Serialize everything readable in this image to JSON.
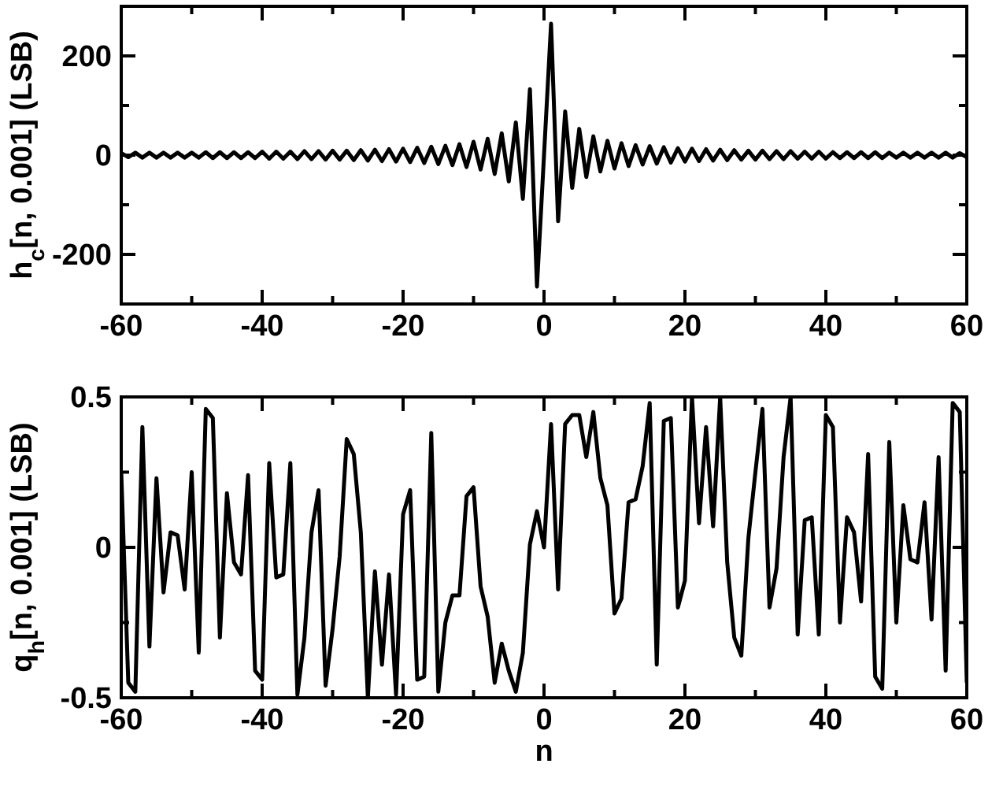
{
  "chart_data": [
    {
      "type": "line",
      "ylabel": "h$_{c}$[n, 0.001] (LSB)",
      "xlim": [
        -60,
        60
      ],
      "ylim": [
        -300,
        300
      ],
      "xticks": [
        -60,
        {
          "value": -50,
          "label": null
        },
        -40,
        {
          "value": -30,
          "label": null
        },
        -20,
        {
          "value": -10,
          "label": null
        },
        0,
        {
          "value": 10,
          "label": null
        },
        20,
        {
          "value": 30,
          "label": null
        },
        40,
        {
          "value": 50,
          "label": null
        },
        60
      ],
      "yticks": [
        {
          "value": -300,
          "label": null
        },
        -200,
        {
          "value": -100,
          "label": null
        },
        0,
        {
          "value": 100,
          "label": null
        },
        200,
        {
          "value": 300,
          "label": null
        }
      ],
      "grid": false,
      "marker": "none",
      "line_style": "solid",
      "series": [
        {
          "color": "#000000",
          "x": [
            -60,
            -59,
            -58,
            -57,
            -56,
            -55,
            -54,
            -53,
            -52,
            -51,
            -50,
            -49,
            -48,
            -47,
            -46,
            -45,
            -44,
            -43,
            -42,
            -41,
            -40,
            -39,
            -38,
            -37,
            -36,
            -35,
            -34,
            -33,
            -32,
            -31,
            -30,
            -29,
            -28,
            -27,
            -26,
            -25,
            -24,
            -23,
            -22,
            -21,
            -20,
            -19,
            -18,
            -17,
            -16,
            -15,
            -14,
            -13,
            -12,
            -11,
            -10,
            -9,
            -8,
            -7,
            -6,
            -5,
            -4,
            -3,
            -2,
            -1,
            0,
            1,
            2,
            3,
            4,
            5,
            6,
            7,
            8,
            9,
            10,
            11,
            12,
            13,
            14,
            15,
            16,
            17,
            18,
            19,
            20,
            21,
            22,
            23,
            24,
            25,
            26,
            27,
            28,
            29,
            30,
            31,
            32,
            33,
            34,
            35,
            36,
            37,
            38,
            39,
            40,
            41,
            42,
            43,
            44,
            45,
            46,
            47,
            48,
            49,
            50,
            51,
            52,
            53,
            54,
            55,
            56,
            57,
            58,
            59,
            60
          ],
          "values": [
            4,
            -4,
            5,
            -5,
            5,
            -5,
            5,
            -5,
            5,
            -5,
            5,
            -5,
            6,
            -6,
            6,
            -6,
            6,
            -6,
            6,
            -6,
            7,
            -7,
            7,
            -7,
            7,
            -8,
            8,
            -8,
            8,
            -9,
            9,
            -9,
            9,
            -10,
            10,
            -11,
            11,
            -12,
            12,
            -13,
            13,
            -14,
            15,
            -16,
            17,
            -18,
            19,
            -20,
            22,
            -24,
            27,
            -29,
            33,
            -38,
            44,
            -53,
            66,
            -88,
            133,
            -265,
            0,
            265,
            -133,
            88,
            -66,
            53,
            -44,
            38,
            -33,
            29,
            -27,
            24,
            -22,
            20,
            -19,
            18,
            -17,
            16,
            -15,
            14,
            -13,
            13,
            -12,
            12,
            -11,
            11,
            -10,
            10,
            -9,
            9,
            -9,
            9,
            -8,
            8,
            -8,
            8,
            -7,
            7,
            -7,
            7,
            -7,
            6,
            -6,
            6,
            -6,
            6,
            -6,
            6,
            -6,
            5,
            -5,
            5,
            -5,
            5,
            -5,
            5,
            -5,
            5,
            -5,
            4,
            -4
          ]
        }
      ]
    },
    {
      "type": "line",
      "xlabel": "n",
      "ylabel": "q$_{h}$[n, 0.001] (LSB)",
      "xlim": [
        -60,
        60
      ],
      "ylim": [
        -0.5,
        0.5
      ],
      "xticks": [
        -60,
        {
          "value": -50,
          "label": null
        },
        -40,
        {
          "value": -30,
          "label": null
        },
        -20,
        {
          "value": -10,
          "label": null
        },
        0,
        {
          "value": 10,
          "label": null
        },
        20,
        {
          "value": 30,
          "label": null
        },
        40,
        {
          "value": 50,
          "label": null
        },
        60
      ],
      "yticks": [
        -0.5,
        {
          "value": -0.25,
          "label": null
        },
        0,
        {
          "value": 0.25,
          "label": null
        },
        0.5
      ],
      "grid": false,
      "marker": "none",
      "line_style": "solid",
      "series": [
        {
          "color": "#000000",
          "x": [
            -60,
            -59,
            -58,
            -57,
            -56,
            -55,
            -54,
            -53,
            -52,
            -51,
            -50,
            -49,
            -48,
            -47,
            -46,
            -45,
            -44,
            -43,
            -42,
            -41,
            -40,
            -39,
            -38,
            -37,
            -36,
            -35,
            -34,
            -33,
            -32,
            -31,
            -30,
            -29,
            -28,
            -27,
            -26,
            -25,
            -24,
            -23,
            -22,
            -21,
            -20,
            -19,
            -18,
            -17,
            -16,
            -15,
            -14,
            -13,
            -12,
            -11,
            -10,
            -9,
            -8,
            -7,
            -6,
            -5,
            -4,
            -3,
            -2,
            -1,
            0,
            1,
            2,
            3,
            4,
            5,
            6,
            7,
            8,
            9,
            10,
            11,
            12,
            13,
            14,
            15,
            16,
            17,
            18,
            19,
            20,
            21,
            22,
            23,
            24,
            25,
            26,
            27,
            28,
            29,
            30,
            31,
            32,
            33,
            34,
            35,
            36,
            37,
            38,
            39,
            40,
            41,
            42,
            43,
            44,
            45,
            46,
            47,
            48,
            49,
            50,
            51,
            52,
            53,
            54,
            55,
            56,
            57,
            58,
            59,
            60
          ],
          "values": [
            0.25,
            -0.45,
            -0.48,
            0.4,
            -0.33,
            0.23,
            -0.15,
            0.05,
            0.04,
            -0.14,
            0.25,
            -0.35,
            0.46,
            0.43,
            -0.3,
            0.18,
            -0.05,
            -0.09,
            0.24,
            -0.41,
            -0.44,
            0.28,
            -0.1,
            -0.09,
            0.28,
            -0.49,
            -0.3,
            0.05,
            0.19,
            -0.46,
            -0.27,
            -0.03,
            0.36,
            0.31,
            0.05,
            -0.5,
            -0.08,
            -0.39,
            -0.09,
            -0.49,
            0.11,
            0.19,
            -0.44,
            -0.43,
            0.38,
            -0.48,
            -0.25,
            -0.16,
            -0.16,
            0.17,
            0.2,
            -0.13,
            -0.23,
            -0.45,
            -0.32,
            -0.41,
            -0.48,
            -0.35,
            0.01,
            0.12,
            0.0,
            0.41,
            -0.14,
            0.41,
            0.44,
            0.44,
            0.3,
            0.45,
            0.23,
            0.14,
            -0.22,
            -0.17,
            0.15,
            0.16,
            0.27,
            0.48,
            -0.39,
            0.42,
            0.43,
            -0.2,
            -0.11,
            0.5,
            0.08,
            0.4,
            0.07,
            0.5,
            -0.05,
            -0.3,
            -0.36,
            0.03,
            0.25,
            0.46,
            -0.2,
            -0.07,
            0.3,
            0.5,
            -0.29,
            0.09,
            0.1,
            -0.29,
            0.44,
            0.4,
            -0.25,
            0.1,
            0.05,
            -0.18,
            0.31,
            -0.43,
            -0.47,
            0.35,
            -0.25,
            0.14,
            -0.04,
            -0.05,
            0.15,
            -0.24,
            0.3,
            -0.41,
            0.48,
            0.45,
            -0.45
          ]
        }
      ]
    }
  ]
}
